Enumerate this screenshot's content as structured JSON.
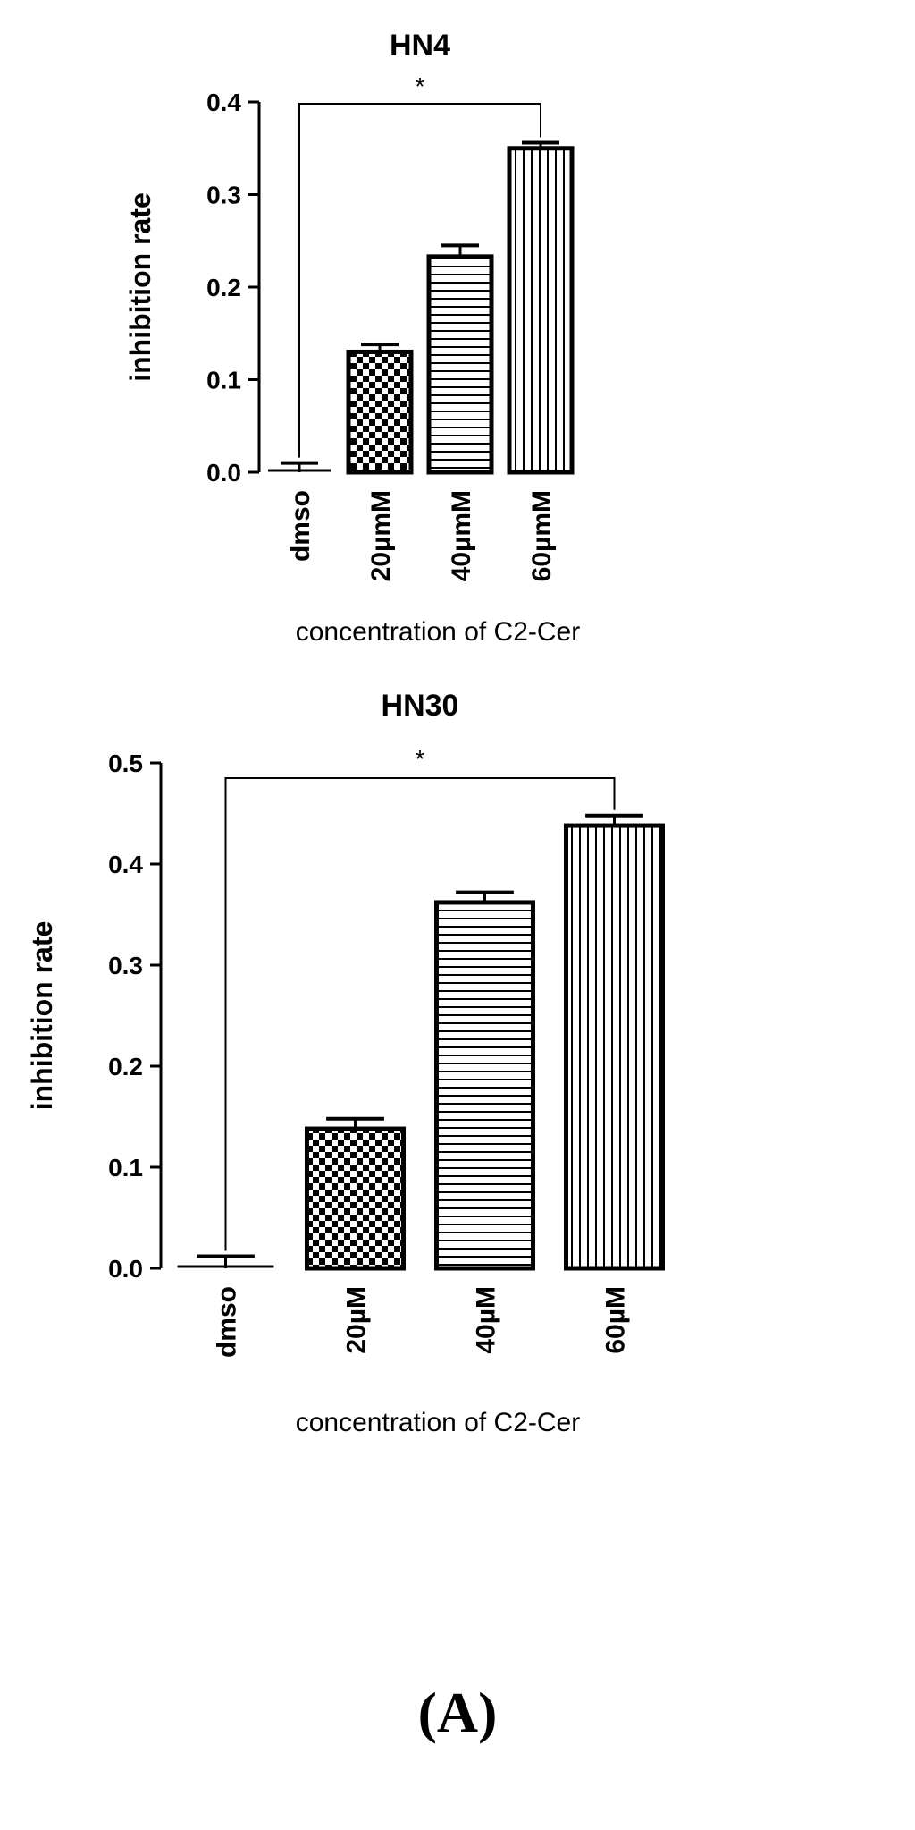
{
  "figure": {
    "panel_label": "(A)"
  },
  "chart_data": [
    {
      "type": "bar",
      "title": "HN4",
      "xlabel": "concentration of C2-Cer",
      "ylabel": "inhibition rate",
      "categories": [
        "dmso",
        "20µmM",
        "40µmM",
        "60µmM"
      ],
      "values": [
        0.0,
        0.13,
        0.233,
        0.35
      ],
      "errors": [
        0.01,
        0.008,
        0.012,
        0.006
      ],
      "patterns": [
        "none",
        "checker",
        "horizontal",
        "vertical"
      ],
      "ylim": [
        0,
        0.4
      ],
      "yticks": [
        "0.0",
        "0.1",
        "0.2",
        "0.3",
        "0.4"
      ],
      "ytick_values": [
        0,
        0.1,
        0.2,
        0.3,
        0.4
      ],
      "significance": {
        "from": "dmso",
        "to": "60µmM",
        "label": "*"
      },
      "legend": "none",
      "grid": false
    },
    {
      "type": "bar",
      "title": "HN30",
      "xlabel": "concentration of C2-Cer",
      "ylabel": "inhibition rate",
      "categories": [
        "dmso",
        "20µM",
        "40µM",
        "60µM"
      ],
      "values": [
        0.0,
        0.138,
        0.362,
        0.438
      ],
      "errors": [
        0.012,
        0.01,
        0.01,
        0.01
      ],
      "patterns": [
        "none",
        "checker",
        "horizontal",
        "vertical"
      ],
      "ylim": [
        0,
        0.5
      ],
      "yticks": [
        "0.0",
        "0.1",
        "0.2",
        "0.3",
        "0.4",
        "0.5"
      ],
      "ytick_values": [
        0,
        0.1,
        0.2,
        0.3,
        0.4,
        0.5
      ],
      "significance": {
        "from": "dmso",
        "to": "60µM",
        "label": "*"
      },
      "legend": "none",
      "grid": false
    }
  ]
}
